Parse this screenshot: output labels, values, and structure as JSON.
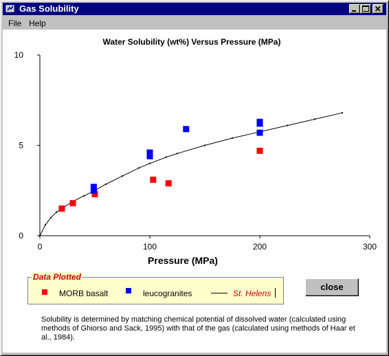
{
  "window": {
    "title": "Gas Solubility",
    "icon": "app-icon",
    "controls": [
      "minimize-icon",
      "maximize-icon",
      "close-icon"
    ]
  },
  "menu": {
    "items": [
      {
        "label": "File"
      },
      {
        "label": "Help"
      }
    ]
  },
  "chart_data": {
    "type": "scatter",
    "title": "Water Solubility (wt%) Versus Pressure (MPa)",
    "xlabel": "Pressure (MPa)",
    "ylabel": "",
    "xlim": [
      0,
      300
    ],
    "ylim": [
      0,
      10
    ],
    "xticks": [
      {
        "value": 0,
        "label": "0"
      },
      {
        "value": 100,
        "label": "100"
      },
      {
        "value": 200,
        "label": "200"
      },
      {
        "value": 300,
        "label": "300"
      }
    ],
    "yticks": [
      {
        "value": 0,
        "label": "0"
      },
      {
        "value": 5,
        "label": "5"
      },
      {
        "value": 10,
        "label": "10"
      }
    ],
    "grid": false,
    "series": [
      {
        "name": "MORB basalt",
        "kind": "points",
        "color": "#ff0000",
        "points": [
          [
            20,
            1.5
          ],
          [
            30,
            1.8
          ],
          [
            50,
            2.3
          ],
          [
            103,
            3.1
          ],
          [
            117,
            2.9
          ],
          [
            200,
            4.7
          ]
        ]
      },
      {
        "name": "leucogranites",
        "kind": "points",
        "color": "#0000ff",
        "points": [
          [
            49,
            2.5
          ],
          [
            49,
            2.7
          ],
          [
            100,
            4.4
          ],
          [
            100,
            4.6
          ],
          [
            133,
            5.9
          ],
          [
            200,
            5.7
          ],
          [
            200,
            6.2
          ],
          [
            200,
            6.3
          ]
        ]
      },
      {
        "name": "St. Helens",
        "kind": "line",
        "color": "#000000",
        "points": [
          [
            0,
            0
          ],
          [
            5,
            0.6
          ],
          [
            10,
            1.0
          ],
          [
            15,
            1.3
          ],
          [
            20,
            1.5
          ],
          [
            30,
            1.9
          ],
          [
            40,
            2.2
          ],
          [
            50,
            2.5
          ],
          [
            60,
            2.85
          ],
          [
            75,
            3.3
          ],
          [
            90,
            3.75
          ],
          [
            100,
            4.0
          ],
          [
            115,
            4.35
          ],
          [
            125,
            4.55
          ],
          [
            150,
            5.0
          ],
          [
            175,
            5.4
          ],
          [
            200,
            5.75
          ],
          [
            225,
            6.1
          ],
          [
            250,
            6.45
          ],
          [
            275,
            6.8
          ]
        ]
      }
    ],
    "legend": {
      "title": "Data Plotted",
      "position": "bottom-left"
    }
  },
  "buttons": {
    "close_label": "close"
  },
  "footnote": "Solubility is determined by matching chemical potential of dissolved water (calculated using methods of Ghiorso and Sack, 1995) with that of the gas (calculated using methods of Haar et al., 1984)."
}
